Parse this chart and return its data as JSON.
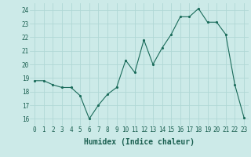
{
  "x": [
    0,
    1,
    2,
    3,
    4,
    5,
    6,
    7,
    8,
    9,
    10,
    11,
    12,
    13,
    14,
    15,
    16,
    17,
    18,
    19,
    20,
    21,
    22,
    23
  ],
  "y": [
    18.8,
    18.8,
    18.5,
    18.3,
    18.3,
    17.7,
    16.0,
    17.0,
    17.8,
    18.3,
    20.3,
    19.4,
    21.8,
    20.0,
    21.2,
    22.2,
    23.5,
    23.5,
    24.1,
    23.1,
    23.1,
    22.2,
    18.5,
    16.1
  ],
  "xlabel": "Humidex (Indice chaleur)",
  "xlim": [
    -0.5,
    23.5
  ],
  "ylim": [
    15.5,
    24.5
  ],
  "yticks": [
    16,
    17,
    18,
    19,
    20,
    21,
    22,
    23,
    24
  ],
  "xticks": [
    0,
    1,
    2,
    3,
    4,
    5,
    6,
    7,
    8,
    9,
    10,
    11,
    12,
    13,
    14,
    15,
    16,
    17,
    18,
    19,
    20,
    21,
    22,
    23
  ],
  "line_color": "#1a6b5a",
  "marker_color": "#1a6b5a",
  "bg_color": "#cceae8",
  "grid_color": "#b0d8d5",
  "xlabel_fontsize": 7,
  "tick_fontsize": 5.5
}
